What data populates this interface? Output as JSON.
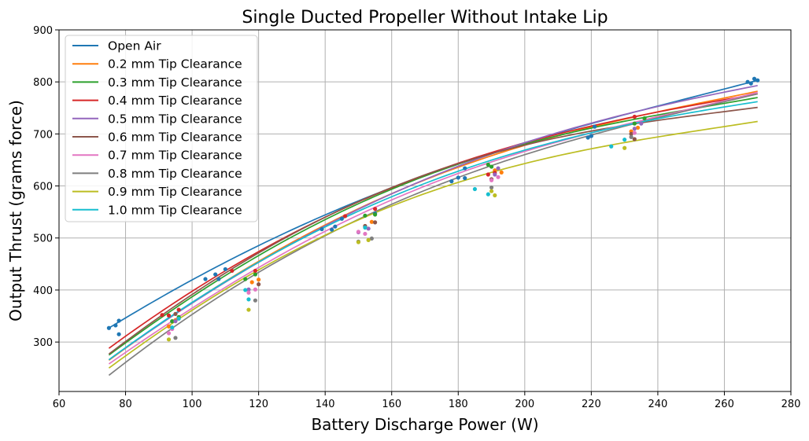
{
  "chart_data": {
    "type": "line",
    "title": "Single Ducted Propeller Without Intake Lip",
    "xlabel": "Battery Discharge Power (W)",
    "ylabel": "Output Thrust (grams force)",
    "xlim": [
      60,
      280
    ],
    "ylim": [
      205,
      900
    ],
    "xticks": [
      60,
      80,
      100,
      120,
      140,
      160,
      180,
      200,
      220,
      240,
      260,
      280
    ],
    "yticks": [
      300,
      400,
      500,
      600,
      700,
      800,
      900
    ],
    "grid": true,
    "legend_position": "top-left",
    "series": [
      {
        "name": "Open Air",
        "color": "#1f77b4",
        "line": {
          "x0": 75,
          "x1": 270,
          "y": [
            327,
            497,
            626,
            722,
            803
          ]
        },
        "points": [
          [
            75,
            327
          ],
          [
            77,
            332
          ],
          [
            78,
            341
          ],
          [
            78,
            315
          ],
          [
            104,
            421
          ],
          [
            107,
            430
          ],
          [
            108,
            421
          ],
          [
            110,
            440
          ],
          [
            139,
            517
          ],
          [
            142,
            516
          ],
          [
            143,
            522
          ],
          [
            145,
            537
          ],
          [
            155,
            547
          ],
          [
            178,
            609
          ],
          [
            180,
            616
          ],
          [
            182,
            634
          ],
          [
            182,
            615
          ],
          [
            219,
            693
          ],
          [
            220,
            696
          ],
          [
            221,
            714
          ],
          [
            267,
            800
          ],
          [
            268,
            797
          ],
          [
            269,
            806
          ],
          [
            270,
            803
          ]
        ]
      },
      {
        "name": "0.2 mm Tip Clearance",
        "color": "#ff7f0e",
        "line": {
          "x0": 75,
          "x1": 270,
          "y": [
            265,
            469,
            618,
            715,
            782
          ]
        },
        "points": [
          [
            93,
            330
          ],
          [
            95,
            342
          ],
          [
            118,
            415
          ],
          [
            120,
            420
          ],
          [
            152,
            522
          ],
          [
            154,
            531
          ],
          [
            191,
            630
          ],
          [
            193,
            626
          ],
          [
            232,
            705
          ],
          [
            234,
            712
          ]
        ]
      },
      {
        "name": "0.3 mm Tip Clearance",
        "color": "#2ca02c",
        "line": {
          "x0": 75,
          "x1": 270,
          "y": [
            275,
            480,
            625,
            713,
            770
          ]
        },
        "points": [
          [
            94,
            340
          ],
          [
            96,
            348
          ],
          [
            116,
            421
          ],
          [
            119,
            430
          ],
          [
            152,
            543
          ],
          [
            155,
            545
          ],
          [
            189,
            641
          ],
          [
            190,
            637
          ],
          [
            233,
            720
          ],
          [
            236,
            730
          ]
        ]
      },
      {
        "name": "0.4 mm Tip Clearance",
        "color": "#d62728",
        "line": {
          "x0": 75,
          "x1": 270,
          "y": [
            288,
            487,
            627,
            717,
            777
          ]
        },
        "points": [
          [
            91,
            352
          ],
          [
            93,
            351
          ],
          [
            96,
            362
          ],
          [
            112,
            437
          ],
          [
            119,
            437
          ],
          [
            146,
            542
          ],
          [
            155,
            556
          ],
          [
            189,
            622
          ],
          [
            191,
            625
          ],
          [
            233,
            733
          ]
        ]
      },
      {
        "name": "0.5 mm Tip Clearance",
        "color": "#9467bd",
        "line": {
          "x0": 75,
          "x1": 270,
          "y": [
            266,
            467,
            619,
            723,
            793
          ]
        },
        "points": [
          [
            95,
            340
          ],
          [
            117,
            401
          ],
          [
            150,
            511
          ],
          [
            153,
            518
          ],
          [
            191,
            622
          ],
          [
            192,
            634
          ],
          [
            233,
            710
          ],
          [
            235,
            720
          ]
        ]
      },
      {
        "name": "0.6 mm Tip Clearance",
        "color": "#8c564b",
        "line": {
          "x0": 75,
          "x1": 270,
          "y": [
            277,
            485,
            627,
            707,
            751
          ]
        },
        "points": [
          [
            95,
            354
          ],
          [
            120,
            411
          ],
          [
            152,
            523
          ],
          [
            155,
            530
          ],
          [
            190,
            613
          ],
          [
            232,
            700
          ],
          [
            233,
            690
          ]
        ]
      },
      {
        "name": "0.7 mm Tip Clearance",
        "color": "#e377c2",
        "line": {
          "x0": 75,
          "x1": 270,
          "y": [
            258,
            457,
            606,
            704,
            780
          ]
        },
        "points": [
          [
            93,
            317
          ],
          [
            94,
            325
          ],
          [
            117,
            395
          ],
          [
            119,
            401
          ],
          [
            150,
            512
          ],
          [
            152,
            508
          ],
          [
            190,
            611
          ],
          [
            192,
            617
          ],
          [
            233,
            702
          ]
        ]
      },
      {
        "name": "0.8 mm Tip Clearance",
        "color": "#7f7f7f",
        "line": {
          "x0": 75,
          "x1": 270,
          "y": [
            236,
            448,
            598,
            700,
            777
          ]
        },
        "points": [
          [
            95,
            308
          ],
          [
            119,
            380
          ],
          [
            150,
            493
          ],
          [
            154,
            499
          ],
          [
            190,
            597
          ],
          [
            232,
            694
          ]
        ]
      },
      {
        "name": "0.9 mm Tip Clearance",
        "color": "#bcbd22",
        "line": {
          "x0": 75,
          "x1": 270,
          "y": [
            250,
            452,
            591,
            673,
            724
          ]
        },
        "points": [
          [
            93,
            305
          ],
          [
            117,
            362
          ],
          [
            150,
            492
          ],
          [
            153,
            496
          ],
          [
            190,
            590
          ],
          [
            191,
            582
          ],
          [
            230,
            673
          ]
        ]
      },
      {
        "name": "1.0 mm Tip Clearance",
        "color": "#17becf",
        "line": {
          "x0": 75,
          "x1": 270,
          "y": [
            266,
            467,
            611,
            704,
            762
          ]
        },
        "points": [
          [
            94,
            328
          ],
          [
            96,
            345
          ],
          [
            116,
            400
          ],
          [
            117,
            382
          ],
          [
            152,
            520
          ],
          [
            185,
            594
          ],
          [
            189,
            584
          ],
          [
            226,
            676
          ],
          [
            230,
            689
          ]
        ]
      }
    ]
  }
}
